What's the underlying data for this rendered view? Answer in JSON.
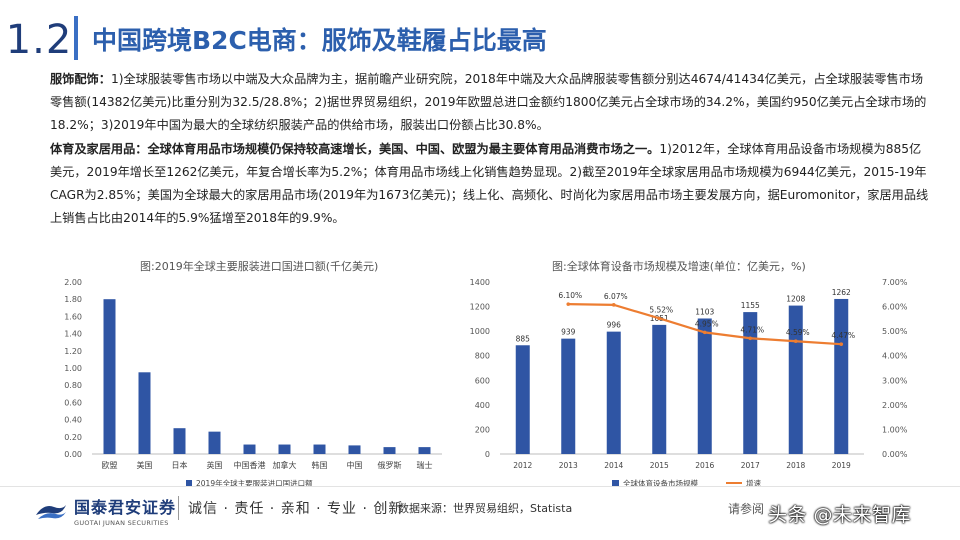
{
  "header": {
    "section_number": "1.2",
    "title": "中国跨境B2C电商：服饰及鞋履占比最高"
  },
  "body": {
    "p1_label": "服饰配饰：",
    "p1_text": "1)全球服装零售市场以中端及大众品牌为主，据前瞻产业研究院，2018年中端及大众品牌服装零售额分别达4674/41434亿美元，占全球服装零售市场零售额(14382亿美元)比重分别为32.5/28.8%；2)据世界贸易组织，2019年欧盟总进口金额约1800亿美元占全球市场的34.2%，美国约950亿美元占全球市场的18.2%；3)2019年中国为最大的全球纺织服装产品的供给市场，服装出口份额占比30.8%。",
    "p2_label": "体育及家居用品：全球体育用品市场规模仍保持较高速增长，美国、中国、欧盟为最主要体育用品消费市场之一。",
    "p2_text": "1)2012年，全球体育用品设备市场规模为885亿美元，2019年增长至1262亿美元，年复合增长率为5.2%；体育用品市场线上化销售趋势显现。2)截至2019年全球家居用品市场规模为6944亿美元，2015-19年CAGR为2.85%；美国为全球最大的家居用品市场(2019年为1673亿美元)；线上化、高频化、时尚化为家居用品市场主要发展方向，据Euromonitor，家居用品线上销售占比由2014年的5.9%猛增至2018年的9.9%。"
  },
  "chart_data": [
    {
      "type": "bar",
      "title": "图:2019年全球主要服装进口国进口额(千亿美元)",
      "categories": [
        "欧盟",
        "美国",
        "日本",
        "英国",
        "中国香港",
        "加拿大",
        "韩国",
        "中国",
        "俄罗斯",
        "瑞士"
      ],
      "series": [
        {
          "name": "2019年全球主要服装进口国进口额",
          "values": [
            1.8,
            0.95,
            0.3,
            0.26,
            0.11,
            0.11,
            0.11,
            0.1,
            0.08,
            0.08
          ]
        }
      ],
      "yticks": [
        "0.00",
        "0.20",
        "0.40",
        "0.60",
        "0.80",
        "1.00",
        "1.20",
        "1.40",
        "1.60",
        "1.80",
        "2.00"
      ],
      "ylim": [
        0,
        2.0
      ],
      "color": "#2f55a4",
      "legend_position": "bottom"
    },
    {
      "type": "bar+line",
      "title": "图:全球体育设备市场规模及增速(单位：亿美元，%)",
      "categories": [
        "2012",
        "2013",
        "2014",
        "2015",
        "2016",
        "2017",
        "2018",
        "2019"
      ],
      "series": [
        {
          "name": "全球体育设备市场规模",
          "type": "bar",
          "axis": "left",
          "values": [
            885,
            939,
            996,
            1051,
            1103,
            1155,
            1208,
            1262
          ],
          "labels": [
            "885",
            "939",
            "996",
            "1051",
            "1103",
            "1155",
            "1208",
            "1262"
          ]
        },
        {
          "name": "增速",
          "type": "line",
          "axis": "right",
          "values": [
            6.1,
            6.07,
            5.52,
            4.95,
            4.71,
            4.59,
            4.47
          ],
          "x": [
            "2013",
            "2014",
            "2015",
            "2016",
            "2017",
            "2018",
            "2019"
          ],
          "labels": [
            "6.10%",
            "6.07%",
            "5.52%",
            "4.95%",
            "4.71%",
            "4.59%",
            "4.47%"
          ]
        }
      ],
      "yticks_left": [
        "0",
        "200",
        "400",
        "600",
        "800",
        "1000",
        "1200",
        "1400"
      ],
      "ylim_left": [
        0,
        1400
      ],
      "yticks_right": [
        "0.00%",
        "1.00%",
        "2.00%",
        "3.00%",
        "4.00%",
        "5.00%",
        "6.00%",
        "7.00%"
      ],
      "ylim_right": [
        0,
        7
      ],
      "bar_color": "#2f55a4",
      "line_color": "#ed7d31",
      "legend_position": "bottom"
    }
  ],
  "footer": {
    "logo_cn": "国泰君安证券",
    "logo_en": "GUOTAI JUNAN SECURITIES",
    "slogan": "诚信 · 责任 · 亲和 · 专业 · 创新",
    "source": "数据来源：世界贸易组织，Statista",
    "disclaimer": "请参阅",
    "watermark": "头条 @未来智库"
  }
}
